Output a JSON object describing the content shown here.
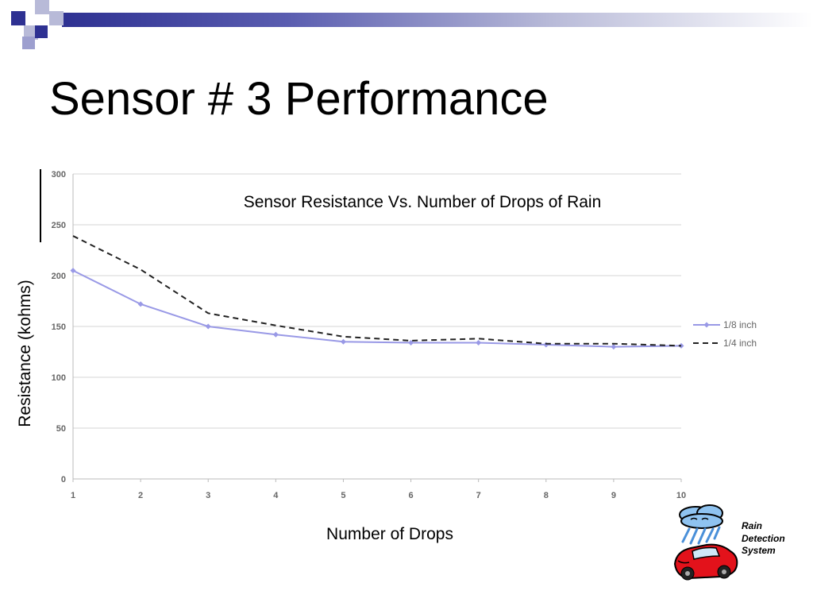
{
  "slide": {
    "title": "Sensor # 3 Performance",
    "accent_color": "#2e3192"
  },
  "chart_data": {
    "type": "line",
    "title": "Sensor Resistance Vs. Number of Drops of Rain",
    "xlabel": "Number of Drops",
    "ylabel": "Resistance (kohms)",
    "x": [
      1,
      2,
      3,
      4,
      5,
      6,
      7,
      8,
      9,
      10
    ],
    "ylim": [
      0,
      300
    ],
    "yticks": [
      0,
      50,
      100,
      150,
      200,
      250,
      300
    ],
    "grid": true,
    "legend_position": "right",
    "series": [
      {
        "name": "1/8 inch",
        "values": [
          205,
          172,
          150,
          142,
          135,
          134,
          134,
          132,
          130,
          131
        ],
        "color": "#9999e6",
        "style": "solid",
        "marker": "diamond"
      },
      {
        "name": "1/4 inch",
        "values": [
          239,
          206,
          163,
          151,
          140,
          136,
          138,
          133,
          133,
          131
        ],
        "color": "#222222",
        "style": "dashed",
        "marker": "none"
      }
    ]
  },
  "logo": {
    "icon": "rain-cloud-car-icon",
    "caption_lines": [
      "Rain",
      "Detection",
      "System"
    ]
  }
}
